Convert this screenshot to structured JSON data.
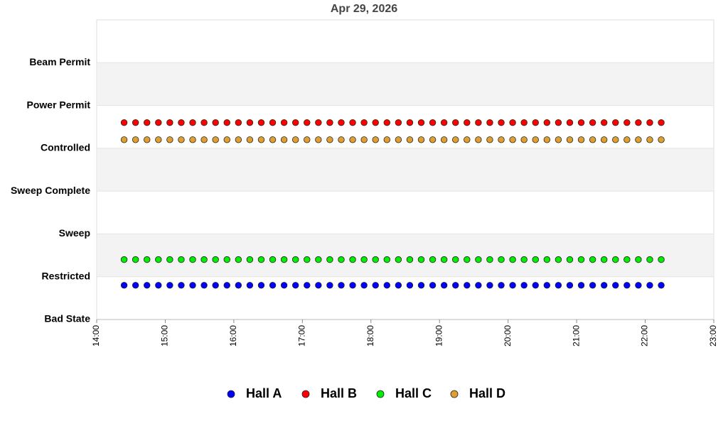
{
  "chart_data": {
    "type": "scatter",
    "title": "Apr 29, 2026",
    "x": [
      864,
      874,
      884,
      894,
      904,
      914,
      924,
      934,
      944,
      954,
      964,
      974,
      984,
      994,
      1004,
      1014,
      1024,
      1034,
      1044,
      1054,
      1064,
      1074,
      1084,
      1094,
      1104,
      1114,
      1124,
      1134,
      1144,
      1154,
      1164,
      1174,
      1184,
      1194,
      1204,
      1214,
      1224,
      1234,
      1244,
      1254,
      1264,
      1274,
      1284,
      1294,
      1304,
      1314,
      1324,
      1334
    ],
    "xlim": [
      840,
      1380
    ],
    "xticks": [
      {
        "value": 840,
        "label": "14:00"
      },
      {
        "value": 900,
        "label": "15:00"
      },
      {
        "value": 960,
        "label": "16:00"
      },
      {
        "value": 1020,
        "label": "17:00"
      },
      {
        "value": 1080,
        "label": "18:00"
      },
      {
        "value": 1140,
        "label": "19:00"
      },
      {
        "value": 1200,
        "label": "20:00"
      },
      {
        "value": 1260,
        "label": "21:00"
      },
      {
        "value": 1320,
        "label": "22:00"
      },
      {
        "value": 1380,
        "label": "23:00"
      }
    ],
    "ylim": [
      0,
      7
    ],
    "yticks": [
      {
        "value": 0,
        "label": "Bad State"
      },
      {
        "value": 1,
        "label": "Restricted"
      },
      {
        "value": 2,
        "label": "Sweep"
      },
      {
        "value": 3,
        "label": "Sweep Complete"
      },
      {
        "value": 4,
        "label": "Controlled"
      },
      {
        "value": 5,
        "label": "Power Permit"
      },
      {
        "value": 6,
        "label": "Beam Permit"
      }
    ],
    "legend": "bottom",
    "series": [
      {
        "name": "Hall A",
        "color": "#0000ff",
        "values": [
          0.8,
          0.8,
          0.8,
          0.8,
          0.8,
          0.8,
          0.8,
          0.8,
          0.8,
          0.8,
          0.8,
          0.8,
          0.8,
          0.8,
          0.8,
          0.8,
          0.8,
          0.8,
          0.8,
          0.8,
          0.8,
          0.8,
          0.8,
          0.8,
          0.8,
          0.8,
          0.8,
          0.8,
          0.8,
          0.8,
          0.8,
          0.8,
          0.8,
          0.8,
          0.8,
          0.8,
          0.8,
          0.8,
          0.8,
          0.8,
          0.8,
          0.8,
          0.8,
          0.8,
          0.8,
          0.8,
          0.8,
          0.8
        ]
      },
      {
        "name": "Hall B",
        "color": "#ff0000",
        "values": [
          4.6,
          4.6,
          4.6,
          4.6,
          4.6,
          4.6,
          4.6,
          4.6,
          4.6,
          4.6,
          4.6,
          4.6,
          4.6,
          4.6,
          4.6,
          4.6,
          4.6,
          4.6,
          4.6,
          4.6,
          4.6,
          4.6,
          4.6,
          4.6,
          4.6,
          4.6,
          4.6,
          4.6,
          4.6,
          4.6,
          4.6,
          4.6,
          4.6,
          4.6,
          4.6,
          4.6,
          4.6,
          4.6,
          4.6,
          4.6,
          4.6,
          4.6,
          4.6,
          4.6,
          4.6,
          4.6,
          4.6,
          4.6
        ]
      },
      {
        "name": "Hall C",
        "color": "#00ee00",
        "values": [
          1.4,
          1.4,
          1.4,
          1.4,
          1.4,
          1.4,
          1.4,
          1.4,
          1.4,
          1.4,
          1.4,
          1.4,
          1.4,
          1.4,
          1.4,
          1.4,
          1.4,
          1.4,
          1.4,
          1.4,
          1.4,
          1.4,
          1.4,
          1.4,
          1.4,
          1.4,
          1.4,
          1.4,
          1.4,
          1.4,
          1.4,
          1.4,
          1.4,
          1.4,
          1.4,
          1.4,
          1.4,
          1.4,
          1.4,
          1.4,
          1.4,
          1.4,
          1.4,
          1.4,
          1.4,
          1.4,
          1.4,
          1.4
        ]
      },
      {
        "name": "Hall D",
        "color": "#e0a030",
        "values": [
          4.2,
          4.2,
          4.2,
          4.2,
          4.2,
          4.2,
          4.2,
          4.2,
          4.2,
          4.2,
          4.2,
          4.2,
          4.2,
          4.2,
          4.2,
          4.2,
          4.2,
          4.2,
          4.2,
          4.2,
          4.2,
          4.2,
          4.2,
          4.2,
          4.2,
          4.2,
          4.2,
          4.2,
          4.2,
          4.2,
          4.2,
          4.2,
          4.2,
          4.2,
          4.2,
          4.2,
          4.2,
          4.2,
          4.2,
          4.2,
          4.2,
          4.2,
          4.2,
          4.2,
          4.2,
          4.2,
          4.2,
          4.2
        ]
      }
    ]
  }
}
